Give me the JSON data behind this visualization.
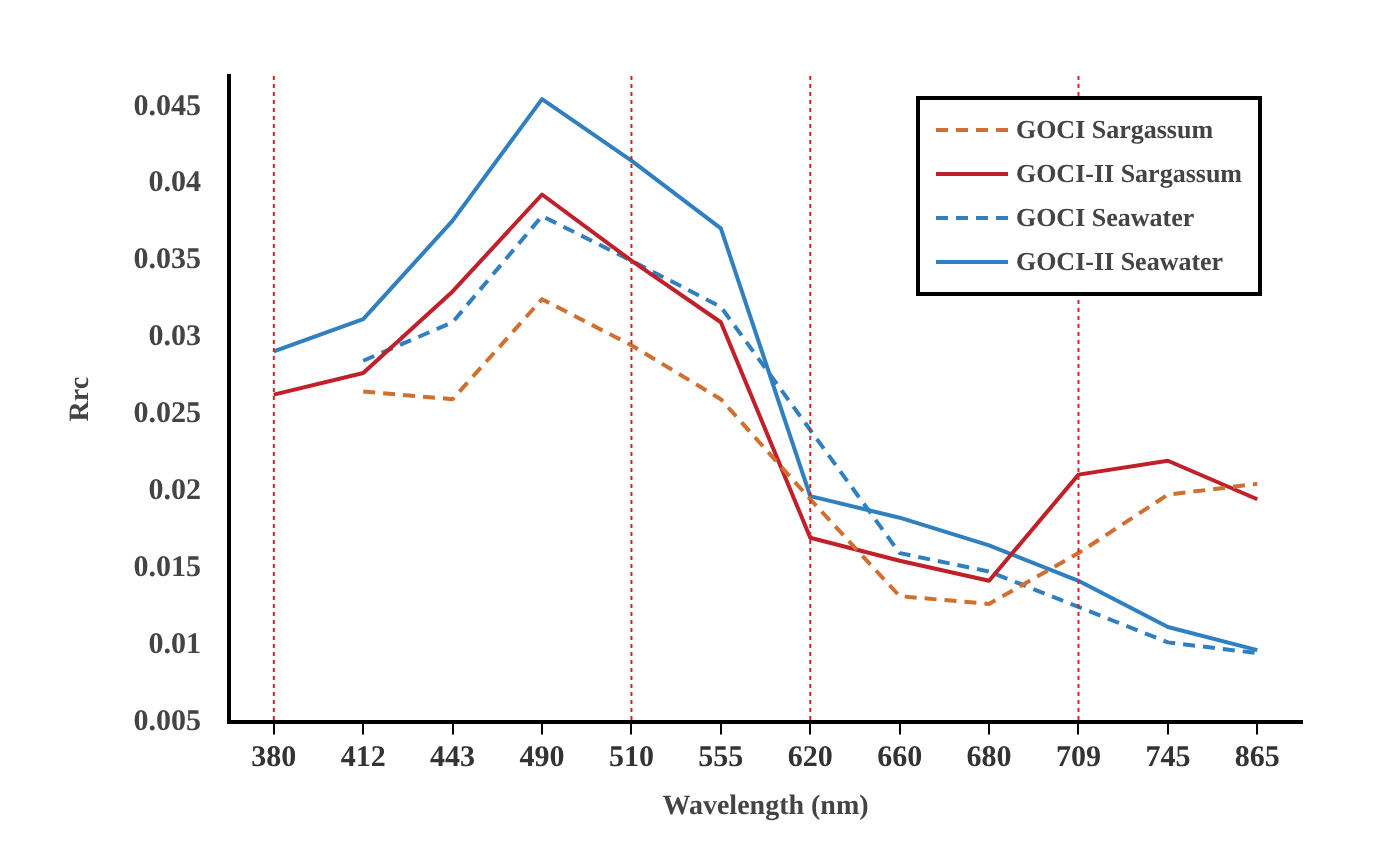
{
  "chart_data": {
    "type": "line",
    "xlabel": "Wavelength (nm)",
    "ylabel": "Rrc",
    "categories": [
      "380",
      "412",
      "443",
      "490",
      "510",
      "555",
      "620",
      "660",
      "680",
      "709",
      "745",
      "865"
    ],
    "ylim": [
      0.005,
      0.047
    ],
    "yticks": [
      0.005,
      0.01,
      0.015,
      0.02,
      0.025,
      0.03,
      0.035,
      0.04,
      0.045
    ],
    "grid": false,
    "legend": "top right",
    "marker": "none",
    "series": [
      {
        "name": "GOCI Sargassum",
        "color": "#d07030",
        "line_style": "dashed",
        "values": [
          null,
          0.0265,
          0.026,
          0.0325,
          0.0295,
          0.026,
          0.0195,
          0.0132,
          0.0127,
          0.016,
          0.0198,
          0.0205
        ]
      },
      {
        "name": "GOCI-II Sargassum",
        "color": "#c0202a",
        "line_style": "solid",
        "values": [
          0.0263,
          0.0277,
          0.033,
          0.0393,
          0.035,
          0.031,
          0.017,
          0.0155,
          0.0142,
          0.0211,
          0.022,
          0.0195
        ]
      },
      {
        "name": "GOCI Seawater",
        "color": "#2f7fc1",
        "line_style": "dashed",
        "values": [
          null,
          0.0285,
          0.031,
          0.0379,
          0.035,
          0.032,
          0.024,
          0.016,
          0.0148,
          0.0125,
          0.0102,
          0.0095
        ]
      },
      {
        "name": "GOCI-II Seawater",
        "color": "#2f7fc1",
        "line_style": "solid",
        "values": [
          0.0291,
          0.0312,
          0.0376,
          0.0455,
          0.0415,
          0.0371,
          0.0197,
          0.0183,
          0.0165,
          0.0142,
          0.0112,
          0.0097
        ]
      }
    ],
    "ref_lines": [
      {
        "axis": "x",
        "value": "380",
        "color": "#e02020",
        "line_style": "dotted"
      },
      {
        "axis": "x",
        "value": "510",
        "color": "#e02020",
        "line_style": "dotted"
      },
      {
        "axis": "x",
        "value": "620",
        "color": "#e02020",
        "line_style": "dotted"
      },
      {
        "axis": "x",
        "value": "709",
        "color": "#e02020",
        "line_style": "dotted"
      }
    ]
  }
}
